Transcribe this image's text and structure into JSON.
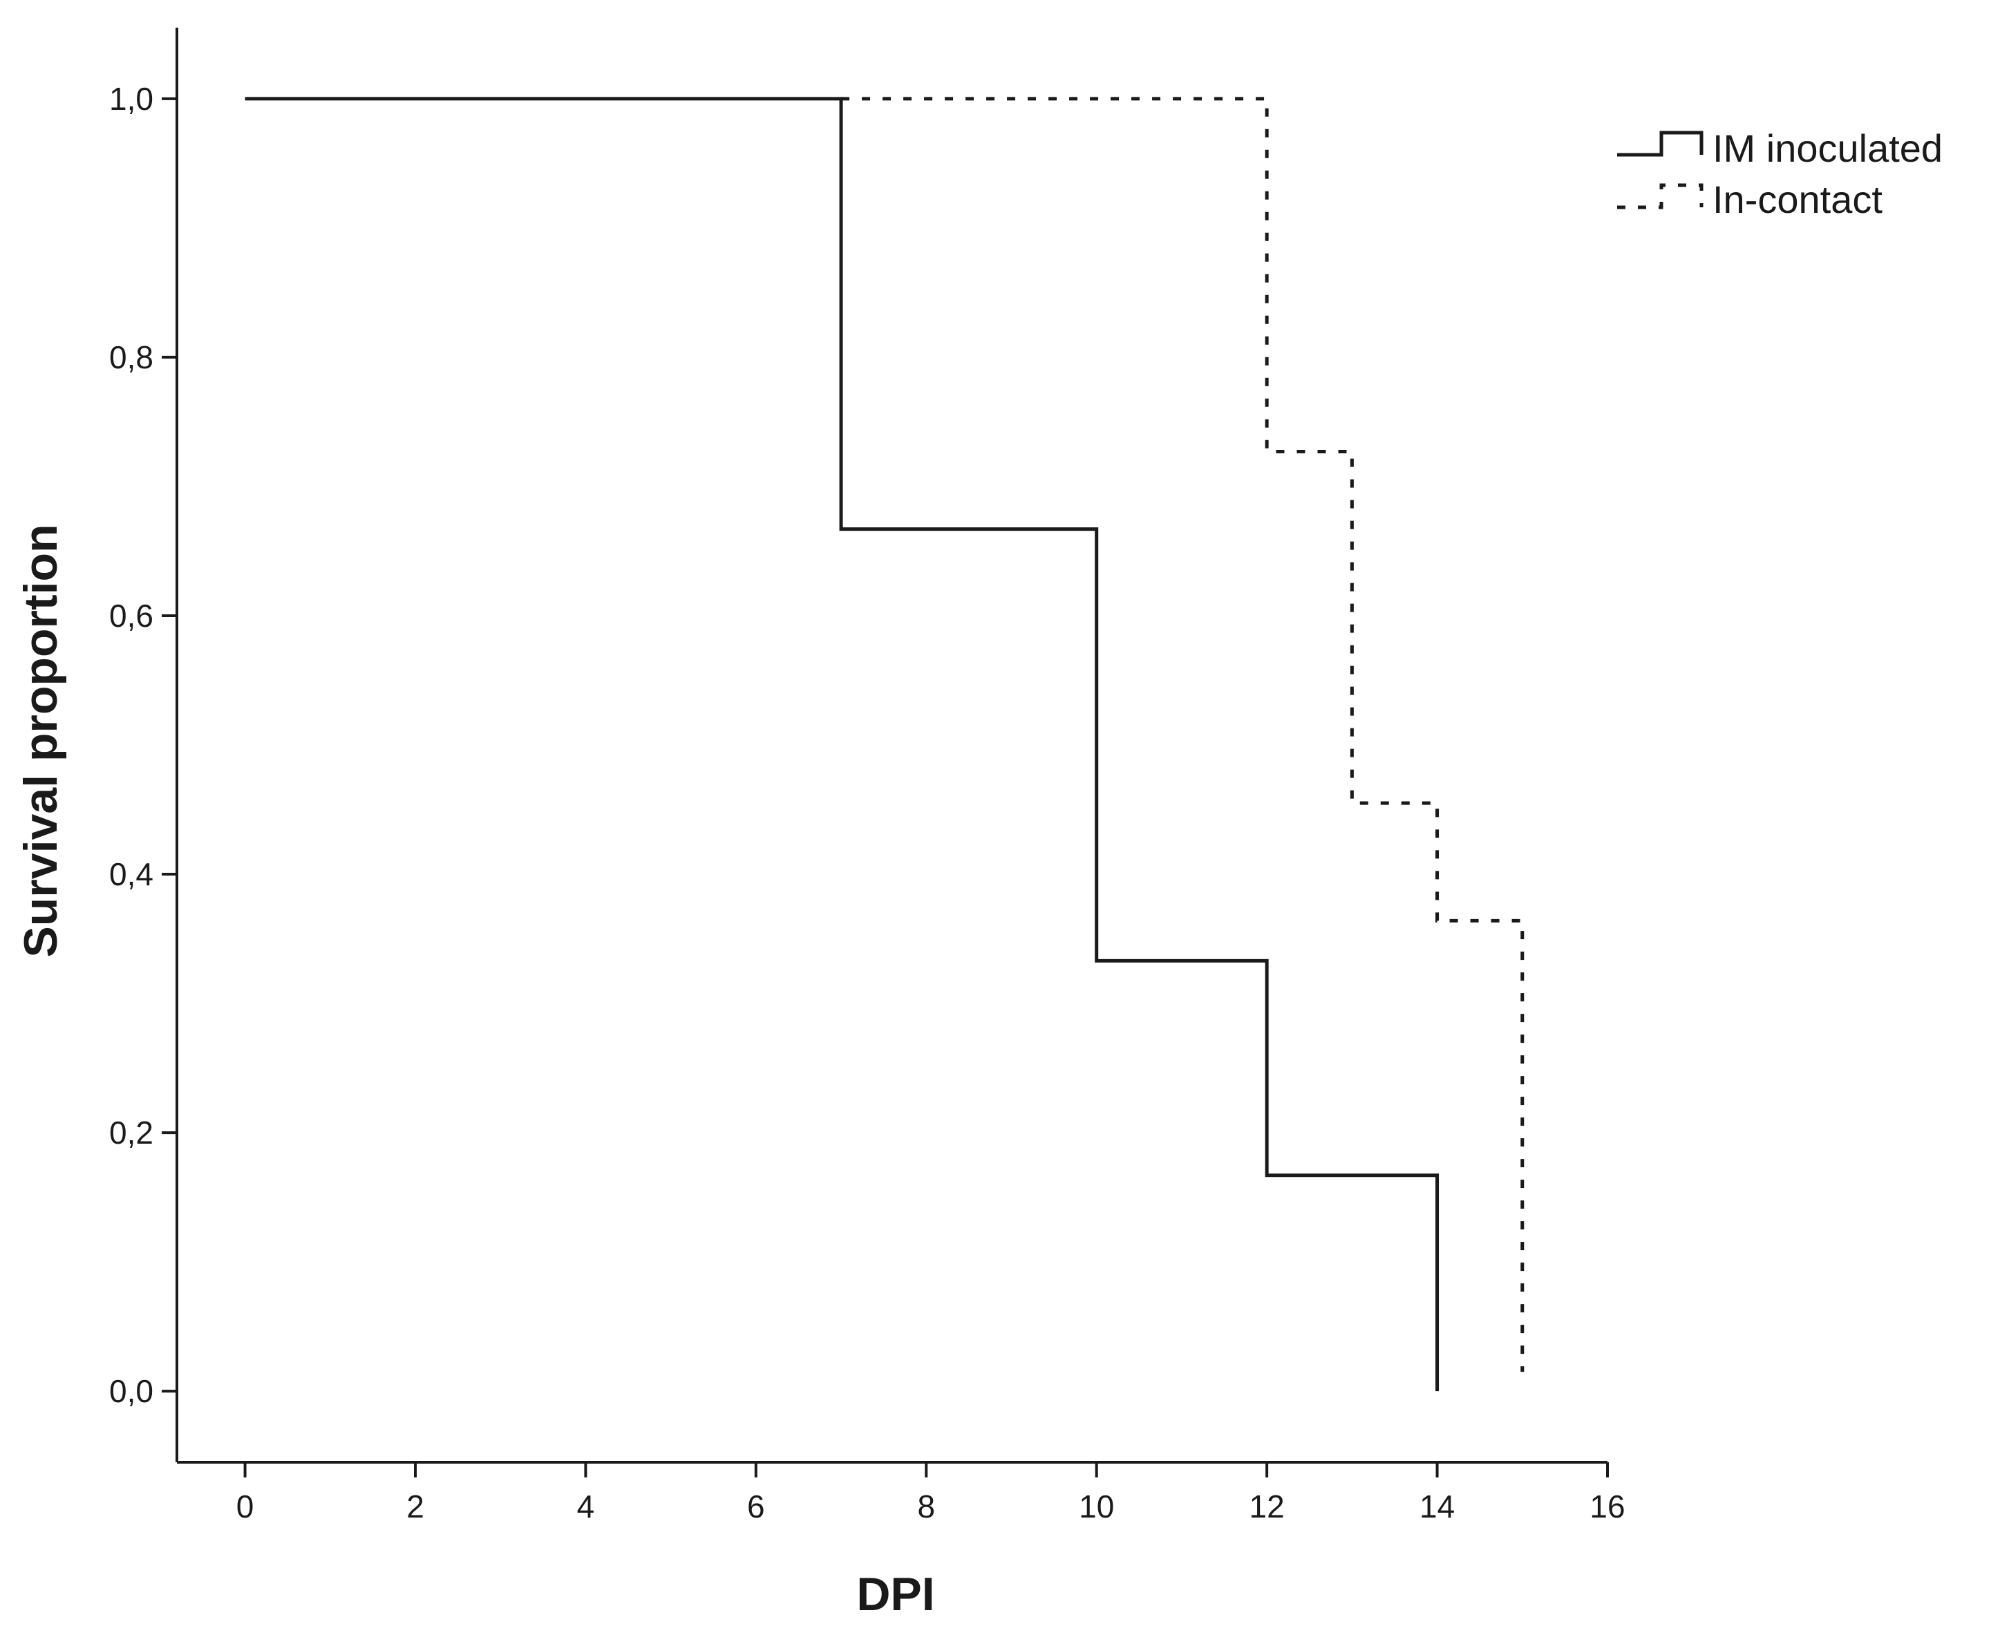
{
  "chart_data": {
    "type": "line",
    "step": true,
    "title": "",
    "xlabel": "DPI",
    "ylabel": "Survival proportion",
    "xlim": [
      -0.8,
      16
    ],
    "ylim": [
      -0.055,
      1.055
    ],
    "xticks": [
      0,
      2,
      4,
      6,
      8,
      10,
      12,
      14,
      16
    ],
    "xtick_labels": [
      "0",
      "2",
      "4",
      "6",
      "8",
      "10",
      "12",
      "14",
      "16"
    ],
    "yticks": [
      0,
      0.2,
      0.4,
      0.6,
      0.8,
      1.0
    ],
    "ytick_labels": [
      "0,0",
      "0,2",
      "0,4",
      "0,6",
      "0,8",
      "1,0"
    ],
    "grid": false,
    "legend_position": "top-right",
    "series": [
      {
        "name": "IM inoculated",
        "style": "solid",
        "color": "#1a1a1a",
        "x": [
          0,
          7,
          10,
          12,
          14
        ],
        "y": [
          1.0,
          0.667,
          0.333,
          0.167,
          0.0
        ]
      },
      {
        "name": "In-contact",
        "style": "dotted",
        "color": "#1a1a1a",
        "x": [
          7,
          12,
          13,
          14,
          15
        ],
        "y": [
          1.0,
          0.727,
          0.455,
          0.364,
          0.015
        ]
      }
    ]
  }
}
